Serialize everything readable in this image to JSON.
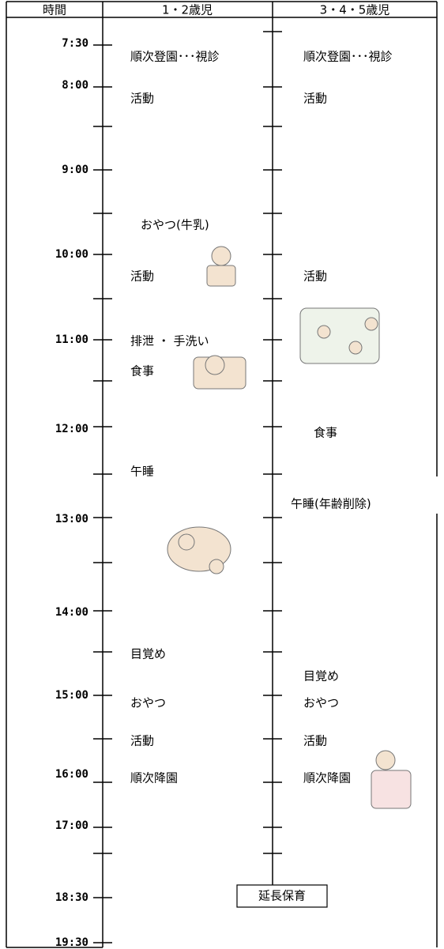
{
  "header": {
    "time": "時間",
    "col1": "1・2歳児",
    "col2": "3・4・5歳児"
  },
  "times": [
    "7:30",
    "8:00",
    "9:00",
    "10:00",
    "11:00",
    "12:00",
    "13:00",
    "14:00",
    "15:00",
    "16:00",
    "17:00",
    "18:30",
    "19:30"
  ],
  "col1": [
    "順次登園･･･視診",
    "活動",
    "おやつ(牛乳)",
    "活動",
    "排泄 ・ 手洗い",
    "食事",
    "午睡",
    "目覚め",
    "おやつ",
    "活動",
    "順次降園"
  ],
  "col2": [
    "順次登園･･･視診",
    "活動",
    "活動",
    "食事",
    "午睡(年齢削除)",
    "目覚め",
    "おやつ",
    "活動",
    "順次降園"
  ],
  "extended": "延長保育"
}
